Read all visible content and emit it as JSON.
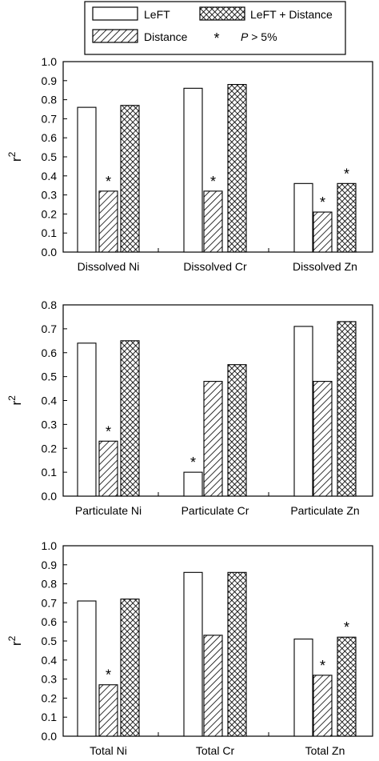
{
  "legend": {
    "items": [
      {
        "label": "LeFT",
        "pattern": "none"
      },
      {
        "label": "LeFT + Distance",
        "pattern": "crosshatch"
      },
      {
        "label": "Distance",
        "pattern": "hatch"
      }
    ],
    "note": {
      "symbol": "*",
      "italic": "P",
      "rest": " > 5%"
    }
  },
  "chart_data": [
    {
      "type": "bar",
      "ylabel": "r",
      "ylabel_sup": "2",
      "ylim": [
        0,
        1.0
      ],
      "yticks": [
        "0.0",
        "0.1",
        "0.2",
        "0.3",
        "0.4",
        "0.5",
        "0.6",
        "0.7",
        "0.8",
        "0.9",
        "1.0"
      ],
      "categories": [
        "Dissolved Ni",
        "Dissolved Cr",
        "Dissolved Zn"
      ],
      "series": [
        {
          "name": "LeFT",
          "pattern": "none",
          "values": [
            0.76,
            0.86,
            0.36
          ],
          "star": [
            false,
            false,
            false
          ]
        },
        {
          "name": "Distance",
          "pattern": "hatch",
          "values": [
            0.32,
            0.32,
            0.21
          ],
          "star": [
            true,
            true,
            true
          ]
        },
        {
          "name": "LeFT + Distance",
          "pattern": "crosshatch",
          "values": [
            0.77,
            0.88,
            0.36
          ],
          "star": [
            false,
            false,
            true
          ]
        }
      ]
    },
    {
      "type": "bar",
      "ylabel": "r",
      "ylabel_sup": "2",
      "ylim": [
        0,
        0.8
      ],
      "yticks": [
        "0.0",
        "0.1",
        "0.2",
        "0.3",
        "0.4",
        "0.5",
        "0.6",
        "0.7",
        "0.8"
      ],
      "categories": [
        "Particulate Ni",
        "Particulate Cr",
        "Particulate Zn"
      ],
      "series": [
        {
          "name": "LeFT",
          "pattern": "none",
          "values": [
            0.64,
            0.1,
            0.71
          ],
          "star": [
            false,
            true,
            false
          ]
        },
        {
          "name": "Distance",
          "pattern": "hatch",
          "values": [
            0.23,
            0.48,
            0.48
          ],
          "star": [
            true,
            false,
            false
          ]
        },
        {
          "name": "LeFT + Distance",
          "pattern": "crosshatch",
          "values": [
            0.65,
            0.55,
            0.73
          ],
          "star": [
            false,
            false,
            false
          ]
        }
      ]
    },
    {
      "type": "bar",
      "ylabel": "r",
      "ylabel_sup": "2",
      "ylim": [
        0,
        1.0
      ],
      "yticks": [
        "0.0",
        "0.1",
        "0.2",
        "0.3",
        "0.4",
        "0.5",
        "0.6",
        "0.7",
        "0.8",
        "0.9",
        "1.0"
      ],
      "categories": [
        "Total Ni",
        "Total Cr",
        "Total Zn"
      ],
      "series": [
        {
          "name": "LeFT",
          "pattern": "none",
          "values": [
            0.71,
            0.86,
            0.51
          ],
          "star": [
            false,
            false,
            false
          ]
        },
        {
          "name": "Distance",
          "pattern": "hatch",
          "values": [
            0.27,
            0.53,
            0.32
          ],
          "star": [
            true,
            false,
            true
          ]
        },
        {
          "name": "LeFT + Distance",
          "pattern": "crosshatch",
          "values": [
            0.72,
            0.86,
            0.52
          ],
          "star": [
            false,
            false,
            true
          ]
        }
      ]
    }
  ]
}
